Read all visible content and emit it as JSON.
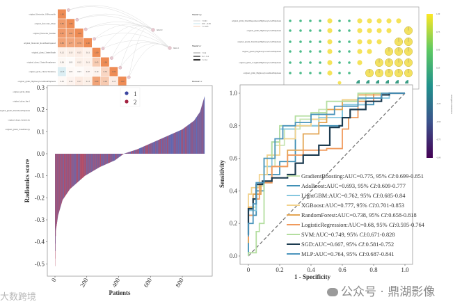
{
  "heatmap": {
    "row_labels": [
      "original_firstorder_10Percentile",
      "original_firstorder_Mean",
      "original_firstorder_Median",
      "original_firstorder_RootMeanSquared",
      "original_glcm_ClusterShade",
      "original_glcm_ClusterProminence",
      "original_glcm_ClusterTendency",
      "original_glrlm_HighGrayLevelRunEmphasis"
    ],
    "extra_labels": [
      "original_glcm_Idmn",
      "original_glcm_Imc1",
      "original_glszm_SmallAreaEmphasis",
      "original_shape_Sphericity",
      "original_glszm_ZoneEntropy"
    ],
    "values": [
      [
        1.0
      ],
      [
        0.85,
        1.0
      ],
      [
        0.87,
        0.83,
        1.0
      ],
      [
        0.8,
        0.77,
        0.79,
        1.0
      ],
      [
        0.12,
        0.13,
        0.15,
        0.11,
        1.0
      ],
      [
        0.06,
        0.03,
        0.12,
        0.11,
        0.45,
        1.0
      ],
      [
        -0.13,
        0.05,
        0.03,
        0.07,
        0.1,
        0.35,
        1.0
      ],
      [
        0.05,
        0.1,
        0.17,
        0.13,
        0.8,
        0.46,
        0.15,
        1.0
      ]
    ],
    "nodes": [
      "label-0",
      "label-1"
    ]
  },
  "mantel_legend": {
    "p_title": "Mantel's p",
    "p_items": [
      "< 0.01",
      "0.01 - 0.05",
      ">= 0.05"
    ],
    "r_title": "Mantel's r",
    "r_items": [
      "< 0.2",
      "0.2 - 0.4",
      ">= 0.4"
    ],
    "pearson_title": "Pearson's r"
  },
  "dotplot": {
    "row_labels": [
      "original_glrlm_SmallDependenceHighGrayLevelEmphasis",
      "original_glrlm_HighGrayLevelEmphasis",
      "original_glszm_SmallAreaHighGrayLevelEmphasis",
      "original_glszm_HighGrayLevelZoneEmphasis",
      "original_glrlm_LongRunHighGrayLevelEmphasis",
      "original_glrlm_HighGrayLevelRunEmphasis"
    ],
    "matrix_legend": "0 = small, 1 = medium, 2 = full circle, -1 = empty",
    "matrix": [
      [
        0,
        0,
        0,
        0,
        1,
        0,
        0,
        1,
        1,
        1,
        1,
        1,
        -1
      ],
      [
        0,
        0,
        0,
        0,
        1,
        0,
        0,
        1,
        1,
        1,
        1,
        -1,
        2
      ],
      [
        0,
        0,
        0,
        0,
        1,
        0,
        0,
        1,
        1,
        1,
        -1,
        2,
        2
      ],
      [
        0,
        0,
        0,
        0,
        1,
        0,
        0,
        1,
        1,
        -1,
        2,
        2,
        2
      ],
      [
        0,
        0,
        0,
        0,
        1,
        0,
        0,
        1,
        -1,
        2,
        2,
        2,
        2
      ],
      [
        0,
        0,
        0,
        0,
        1,
        0,
        0,
        -1,
        2,
        2,
        2,
        2,
        2
      ]
    ],
    "colorbar_ticks": [
      "1.00",
      "0.75",
      "0.50",
      "0.25",
      "0.00",
      "-0.25",
      "-0.50",
      "-0.75",
      "-1.00"
    ],
    "colorbar_label": "Correlation Coefficient"
  },
  "chart_data": [
    {
      "type": "bar",
      "title": "",
      "xlabel": "Patients",
      "ylabel": "Radiomics score",
      "xticks": [
        "0",
        "200",
        "400",
        "600",
        "800"
      ],
      "yticks": [
        "0.3",
        "0.2",
        "0.1",
        "0.0",
        "-0.1",
        "-0.2",
        "-0.3",
        "-0.4",
        "-0.5"
      ],
      "ylim": [
        -0.55,
        0.3
      ],
      "n_patients": 940,
      "sorted_score_quantiles": [
        [
          0,
          -0.51
        ],
        [
          0.005,
          -0.35
        ],
        [
          0.02,
          -0.28
        ],
        [
          0.05,
          -0.21
        ],
        [
          0.1,
          -0.16
        ],
        [
          0.2,
          -0.1
        ],
        [
          0.3,
          -0.06
        ],
        [
          0.4,
          -0.03
        ],
        [
          0.46,
          0
        ],
        [
          0.55,
          0.02
        ],
        [
          0.65,
          0.05
        ],
        [
          0.75,
          0.08
        ],
        [
          0.85,
          0.11
        ],
        [
          0.93,
          0.15
        ],
        [
          0.97,
          0.19
        ],
        [
          1,
          0.26
        ]
      ],
      "legend": [
        {
          "label": "1",
          "color": "#3b45a0"
        },
        {
          "label": "2",
          "color": "#a3213f"
        }
      ],
      "legend_position": "top-center"
    },
    {
      "type": "line",
      "title": "",
      "xlabel": "1 - Specificity",
      "ylabel": "Sensitivity",
      "xticks": [
        "0",
        "0.2",
        "0.4",
        "0.6",
        "0.8",
        "1.0"
      ],
      "yticks": [
        "0.0",
        "0.2",
        "0.4",
        "0.6",
        "0.8",
        "1.0"
      ],
      "xlim": [
        0,
        1
      ],
      "ylim": [
        0,
        1
      ],
      "legend_position": "bottom-right",
      "series": [
        {
          "name": "GradientBoosting",
          "auc": "0.775",
          "ci": "0.699-0.851",
          "color": "#c9e4b4",
          "points": [
            [
              0,
              0.1
            ],
            [
              0.05,
              0.3
            ],
            [
              0.1,
              0.43
            ],
            [
              0.17,
              0.55
            ],
            [
              0.23,
              0.68
            ],
            [
              0.33,
              0.78
            ],
            [
              0.45,
              0.84
            ],
            [
              0.6,
              0.9
            ],
            [
              0.75,
              0.96
            ],
            [
              1,
              1
            ]
          ]
        },
        {
          "name": "AdaBoost",
          "auc": "0.693",
          "ci": "0.609-0.777",
          "color": "#3f8fb5",
          "points": [
            [
              0,
              0
            ],
            [
              0,
              0.08
            ],
            [
              0.05,
              0.25
            ],
            [
              0.1,
              0.4
            ],
            [
              0.2,
              0.5
            ],
            [
              0.3,
              0.58
            ],
            [
              0.6,
              0.8
            ],
            [
              0.8,
              0.93
            ],
            [
              1,
              1
            ]
          ]
        },
        {
          "name": "LightGBM",
          "auc": "0.762",
          "ci": "0.685-0.84",
          "color": "#86c7df",
          "points": [
            [
              0,
              0.1
            ],
            [
              0.05,
              0.28
            ],
            [
              0.1,
              0.45
            ],
            [
              0.15,
              0.55
            ],
            [
              0.2,
              0.7
            ],
            [
              0.3,
              0.78
            ],
            [
              0.45,
              0.8
            ],
            [
              0.6,
              0.85
            ],
            [
              0.75,
              0.93
            ],
            [
              0.9,
              0.97
            ],
            [
              1,
              1
            ]
          ]
        },
        {
          "name": "XGBoost",
          "auc": "0.777",
          "ci": "0.701-0.853",
          "color": "#f2d28c",
          "points": [
            [
              0,
              0.25
            ],
            [
              0.02,
              0.38
            ],
            [
              0.07,
              0.42
            ],
            [
              0.12,
              0.5
            ],
            [
              0.2,
              0.62
            ],
            [
              0.3,
              0.72
            ],
            [
              0.4,
              0.8
            ],
            [
              0.5,
              0.84
            ],
            [
              0.6,
              0.9
            ],
            [
              0.7,
              0.96
            ],
            [
              0.85,
              0.99
            ],
            [
              1,
              1
            ]
          ]
        },
        {
          "name": "RandomForest",
          "auc": "0.738",
          "ci": "0.658-0.818",
          "color": "#e3a553",
          "points": [
            [
              0,
              0.08
            ],
            [
              0.03,
              0.3
            ],
            [
              0.08,
              0.38
            ],
            [
              0.15,
              0.45
            ],
            [
              0.25,
              0.55
            ],
            [
              0.35,
              0.65
            ],
            [
              0.45,
              0.75
            ],
            [
              0.5,
              0.82
            ],
            [
              0.6,
              0.9
            ],
            [
              0.7,
              0.95
            ],
            [
              0.85,
              0.99
            ],
            [
              1,
              1
            ]
          ]
        },
        {
          "name": "LogisticRegression",
          "auc": "0.68",
          "ci": "0.595-0.764",
          "color": "#f09a5c",
          "points": [
            [
              0,
              0.1
            ],
            [
              0.03,
              0.25
            ],
            [
              0.07,
              0.35
            ],
            [
              0.15,
              0.45
            ],
            [
              0.25,
              0.55
            ],
            [
              0.35,
              0.62
            ],
            [
              0.5,
              0.65
            ],
            [
              0.6,
              0.66
            ],
            [
              0.64,
              0.78
            ],
            [
              0.7,
              0.85
            ],
            [
              0.8,
              0.95
            ],
            [
              1,
              1
            ]
          ]
        },
        {
          "name": "SVM",
          "auc": "0.749",
          "ci": "0.671-0.828",
          "color": "#b4dea0",
          "points": [
            [
              0,
              0
            ],
            [
              0.05,
              0.02
            ],
            [
              0.07,
              0.15
            ],
            [
              0.1,
              0.2
            ],
            [
              0.1,
              0.55
            ],
            [
              0.15,
              0.6
            ],
            [
              0.2,
              0.7
            ],
            [
              0.3,
              0.8
            ],
            [
              0.4,
              0.86
            ],
            [
              0.5,
              0.88
            ],
            [
              0.7,
              0.95
            ],
            [
              0.9,
              1
            ],
            [
              1,
              1
            ]
          ]
        },
        {
          "name": "SGD",
          "auc": "0.667",
          "ci": "0.581-0.752",
          "color": "#1c3b50",
          "points": [
            [
              0,
              0.13
            ],
            [
              0,
              0.29
            ],
            [
              0.03,
              0.29
            ],
            [
              0.05,
              0.35
            ],
            [
              0.09,
              0.44
            ],
            [
              0.15,
              0.46
            ],
            [
              0.25,
              0.48
            ],
            [
              0.3,
              0.5
            ],
            [
              0.35,
              0.57
            ],
            [
              0.45,
              0.62
            ],
            [
              0.52,
              0.68
            ],
            [
              0.58,
              0.79
            ],
            [
              0.6,
              0.8
            ],
            [
              0.65,
              0.85
            ],
            [
              0.75,
              0.9
            ],
            [
              0.85,
              0.95
            ],
            [
              0.9,
              0.99
            ],
            [
              1,
              1
            ]
          ]
        },
        {
          "name": "MLP",
          "auc": "0.764",
          "ci": "0.687-0.841",
          "color": "#4b95bd",
          "points": [
            [
              0,
              0.12
            ],
            [
              0.03,
              0.2
            ],
            [
              0.05,
              0.32
            ],
            [
              0.1,
              0.45
            ],
            [
              0.17,
              0.6
            ],
            [
              0.22,
              0.72
            ],
            [
              0.3,
              0.8
            ],
            [
              0.4,
              0.82
            ],
            [
              0.55,
              0.87
            ],
            [
              0.7,
              0.92
            ],
            [
              0.85,
              0.97
            ],
            [
              1,
              1
            ]
          ]
        }
      ]
    }
  ],
  "ci_label": "CI",
  "watermark": {
    "right": "公众号 · 鼎湖影像",
    "left": "大数跨境"
  }
}
